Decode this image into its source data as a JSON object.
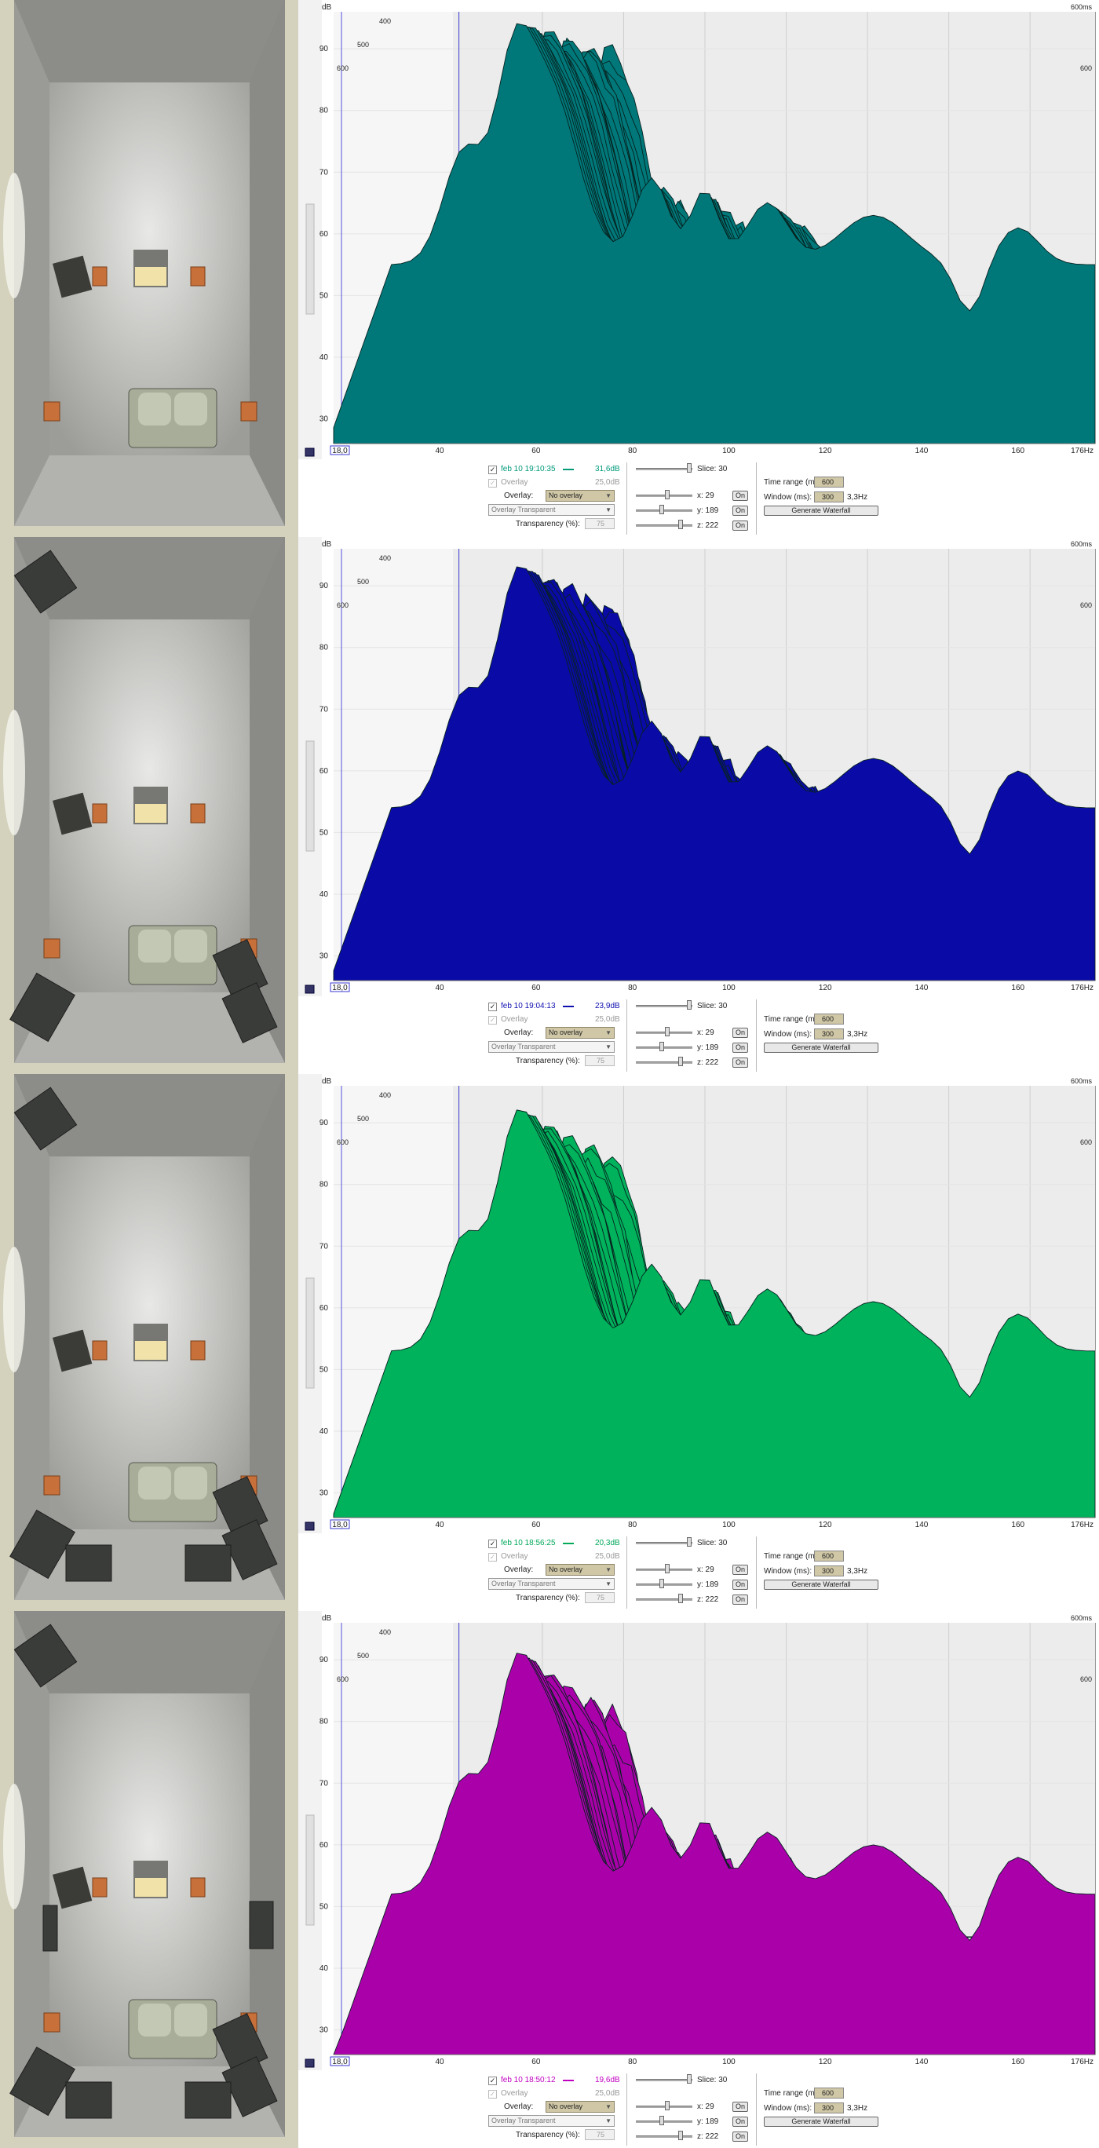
{
  "panels": [
    {
      "color": "#00787a",
      "dark": "#00595a",
      "measurement": "feb 10 19:10:35",
      "level": "31,6dB",
      "tag_color": "#009a7a",
      "absorbers": "none"
    },
    {
      "color": "#0a0aa6",
      "dark": "#060677",
      "measurement": "feb 10 19:04:13",
      "level": "23,9dB",
      "tag_color": "#1010b0",
      "absorbers": "corners"
    },
    {
      "color": "#00b25c",
      "dark": "#008a46",
      "measurement": "feb 10 18:56:25",
      "level": "20,3dB",
      "tag_color": "#00a85a",
      "absorbers": "corners-floor"
    },
    {
      "color": "#aa00aa",
      "dark": "#7d007d",
      "measurement": "feb 10 18:50:12",
      "level": "19,6dB",
      "tag_color": "#c000c0",
      "absorbers": "corners-floor-walls"
    }
  ],
  "chart_data": {
    "type": "area",
    "title": "",
    "xlabel": "",
    "ylabel": "dB",
    "x_ticks": [
      "18,0",
      "40",
      "60",
      "80",
      "100",
      "120",
      "140",
      "160",
      "176Hz"
    ],
    "y_ticks": [
      "30",
      "40",
      "50",
      "60",
      "70",
      "80",
      "90"
    ],
    "time_ticks": [
      "400",
      "500",
      "600",
      "600ms",
      "600"
    ],
    "xlim": [
      18,
      176
    ],
    "ylim": [
      26,
      96
    ],
    "note": "waterfall plot, one stacked slice per time step",
    "slices": 30
  },
  "controls": {
    "overlay_label": "Overlay",
    "overlay_colon_label": "Overlay:",
    "overlay_level": "25,0dB",
    "overlay_value": "No overlay",
    "overlay_mode": "Overlay Transparent",
    "transparency_label": "Transparency (%):",
    "transparency_value": "75",
    "slice_label": "Slice: 30",
    "x_label": "x: 29",
    "y_label": "y: 189",
    "z_label": "z: 222",
    "on_label": "On",
    "time_range_label": "Time range (ms):",
    "time_range_value": "600",
    "window_label": "Window (ms):",
    "window_value": "300",
    "resolution": "3,3Hz",
    "generate_label": "Generate Waterfall"
  }
}
